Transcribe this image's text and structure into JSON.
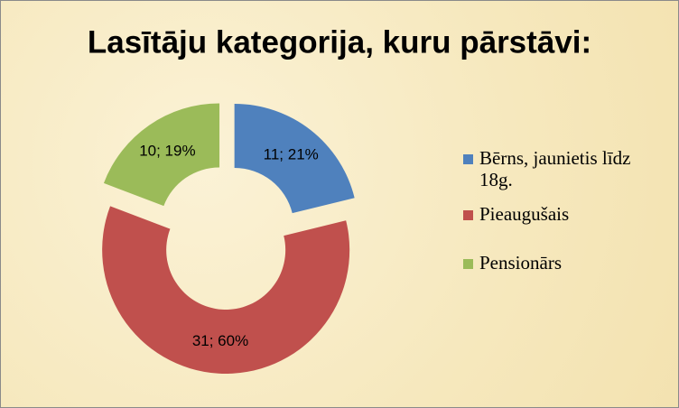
{
  "chart_data": {
    "type": "donut",
    "title": "Lasītāju kategorija, kuru pārstāvi:",
    "categories": [
      "Bērns, jaunietis līdz 18g.",
      "Pieaugušais",
      "Pensionārs"
    ],
    "values": [
      11,
      31,
      10
    ],
    "value_labels": [
      "11; 21%",
      "31; 60%",
      "10; 19%"
    ],
    "colors": [
      "#4f81bd",
      "#c0504d",
      "#9bbb59"
    ],
    "legend": "right"
  }
}
